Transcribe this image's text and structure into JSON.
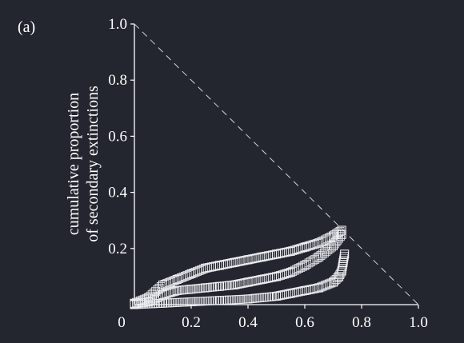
{
  "panel_label": "(a)",
  "chart_data": {
    "type": "scatter",
    "title": "",
    "xlabel": "",
    "ylabel": "cumulative proportion\nof secondary extinctions",
    "xlim": [
      0,
      1.0
    ],
    "ylim": [
      0,
      1.0
    ],
    "x_ticks": [
      "0",
      "0.2",
      "0.4",
      "0.6",
      "0.8",
      "1.0"
    ],
    "y_ticks": [
      "0.2",
      "0.4",
      "0.6",
      "0.8",
      "1.0"
    ],
    "grid": false,
    "legend": "none",
    "marker": "open-square",
    "reference_line": {
      "from": [
        0,
        1.0
      ],
      "to": [
        1.0,
        0
      ],
      "style": "dashed"
    },
    "series": [
      {
        "x": [
          0,
          0.05,
          0.1,
          0.15,
          0.2,
          0.25,
          0.3,
          0.35,
          0.4,
          0.45,
          0.5,
          0.55,
          0.6,
          0.65,
          0.7,
          0.73
        ],
        "y": [
          0.005,
          0.025,
          0.07,
          0.09,
          0.11,
          0.13,
          0.14,
          0.15,
          0.16,
          0.17,
          0.18,
          0.19,
          0.205,
          0.22,
          0.245,
          0.265
        ]
      },
      {
        "x": [
          0,
          0.05,
          0.1,
          0.15,
          0.2,
          0.25,
          0.3,
          0.35,
          0.4,
          0.45,
          0.5,
          0.55,
          0.6,
          0.65,
          0.7,
          0.73
        ],
        "y": [
          0.002,
          0.01,
          0.035,
          0.05,
          0.055,
          0.06,
          0.065,
          0.07,
          0.08,
          0.09,
          0.1,
          0.115,
          0.14,
          0.17,
          0.21,
          0.25
        ]
      },
      {
        "x": [
          0,
          0.1,
          0.2,
          0.3,
          0.4,
          0.5,
          0.55,
          0.6,
          0.65,
          0.7,
          0.72,
          0.73,
          0.735,
          0.74
        ],
        "y": [
          0,
          0.005,
          0.01,
          0.015,
          0.02,
          0.03,
          0.04,
          0.05,
          0.06,
          0.08,
          0.1,
          0.12,
          0.15,
          0.18
        ]
      }
    ]
  }
}
